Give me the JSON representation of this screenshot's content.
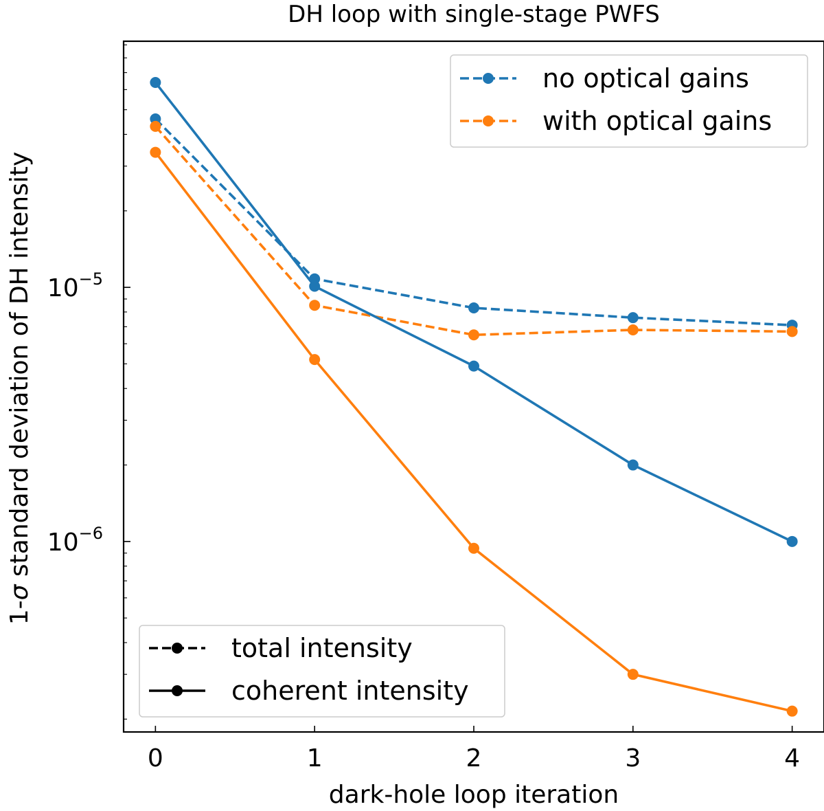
{
  "chart_data": {
    "type": "line",
    "title": "DH loop with single-stage PWFS",
    "xlabel": "dark-hole loop iteration",
    "ylabel_prefix": "1-",
    "ylabel_sigma": "σ",
    "ylabel_suffix": " standard deviation of DH intensity",
    "yscale": "log",
    "xlim": [
      -0.2,
      4.2
    ],
    "ylim": [
      1.78e-07,
      9.3e-05
    ],
    "x": [
      0,
      1,
      2,
      3,
      4
    ],
    "x_tick_labels": [
      "0",
      "1",
      "2",
      "3",
      "4"
    ],
    "y_major_ticks": [
      {
        "value": 1e-06,
        "base": "10",
        "exponent": "−6"
      },
      {
        "value": 1e-05,
        "base": "10",
        "exponent": "−5"
      }
    ],
    "colors": {
      "no_gains": "#1f77b4",
      "with_gains": "#ff7f0e",
      "axis": "#000000"
    },
    "series": [
      {
        "name": "no optical gains — total intensity",
        "gains": "no_gains",
        "style": "dashed",
        "values": [
          4.6e-05,
          1.08e-05,
          8.3e-06,
          7.6e-06,
          7.1e-06
        ]
      },
      {
        "name": "with optical gains — total intensity",
        "gains": "with_gains",
        "style": "dashed",
        "values": [
          4.3e-05,
          8.5e-06,
          6.5e-06,
          6.8e-06,
          6.7e-06
        ]
      },
      {
        "name": "no optical gains — coherent intensity",
        "gains": "no_gains",
        "style": "solid",
        "values": [
          6.4e-05,
          1.01e-05,
          4.9e-06,
          2e-06,
          1e-06
        ]
      },
      {
        "name": "with optical gains — coherent intensity",
        "gains": "with_gains",
        "style": "solid",
        "values": [
          3.4e-05,
          5.2e-06,
          9.4e-07,
          3e-07,
          2.15e-07
        ]
      }
    ],
    "legend_color": {
      "position": "top-right",
      "entries": [
        {
          "label": "no optical gains",
          "gains": "no_gains",
          "style": "dashed"
        },
        {
          "label": "with optical gains",
          "gains": "with_gains",
          "style": "dashed"
        }
      ]
    },
    "legend_style": {
      "position": "bottom-left",
      "entries": [
        {
          "label": "total intensity",
          "style": "dashed"
        },
        {
          "label": "coherent intensity",
          "style": "solid"
        }
      ]
    }
  }
}
